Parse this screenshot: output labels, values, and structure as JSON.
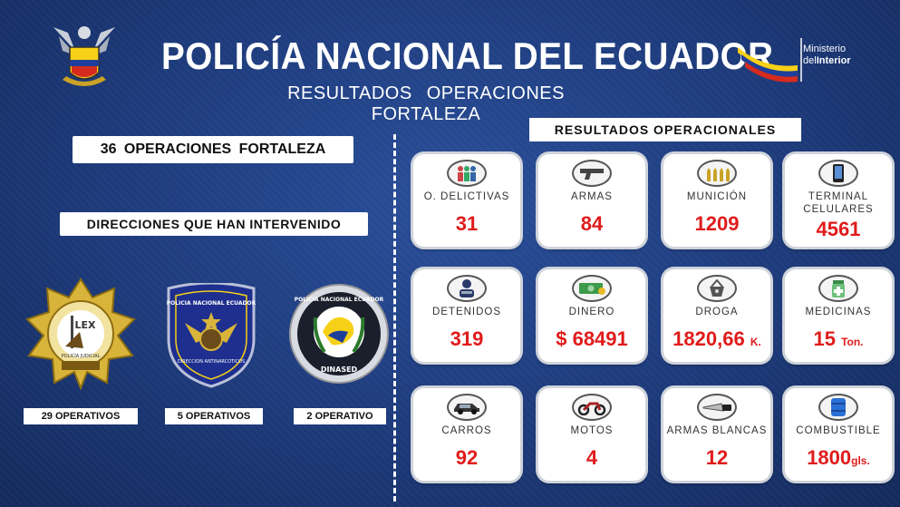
{
  "header": {
    "title": "POLICÍA NACIONAL DEL ECUADOR",
    "subtitle": "RESULTADOS OPERACIONES FORTALEZA",
    "ministerio_line1": "Ministerio",
    "ministerio_line2_prefix": "del",
    "ministerio_line2_bold": "Interior"
  },
  "left": {
    "total_operations": "36 OPERACIONES FORTALEZA",
    "directions_label": "DIRECCIONES QUE HAN INTERVENIDO",
    "units": [
      {
        "label": "29 OPERATIVOS"
      },
      {
        "label": "5 OPERATIVOS"
      },
      {
        "label": "2 OPERATIVO"
      }
    ],
    "badge_texts": {
      "pj_top": "LEX",
      "pj_bottom": "POLICÍA JUDICIAL",
      "antinarc_top": "POLICIA NACIONAL ECUADOR",
      "antinarc_bottom": "DIRECCION ANTINARCOTICOS",
      "dinased_top": "POLICIA NACIONAL ECUADOR",
      "dinased_bottom": "DINASED"
    }
  },
  "results": {
    "header": "RESULTADOS OPERACIONALES",
    "cards": [
      {
        "icon": "people-icon",
        "label": "O. DELICTIVAS",
        "value": "31"
      },
      {
        "icon": "gun-icon",
        "label": "ARMAS",
        "value": "84"
      },
      {
        "icon": "bullets-icon",
        "label": "MUNICIÓN",
        "value": "1209"
      },
      {
        "icon": "phone-icon",
        "label": "TERMINAL CELULARES",
        "value": "4561"
      },
      {
        "icon": "detainee-icon",
        "label": "DETENIDOS",
        "value": "319"
      },
      {
        "icon": "money-icon",
        "label": "DINERO",
        "value": "$ 68491"
      },
      {
        "icon": "drug-icon",
        "label": "DROGA",
        "value": "1820,66",
        "unit": "K."
      },
      {
        "icon": "medicine-icon",
        "label": "MEDICINAS",
        "value": "15",
        "unit": "Ton."
      },
      {
        "icon": "car-icon",
        "label": "CARROS",
        "value": "92"
      },
      {
        "icon": "motorcycle-icon",
        "label": "MOTOS",
        "value": "4"
      },
      {
        "icon": "knife-icon",
        "label": "ARMAS BLANCAS",
        "value": "12"
      },
      {
        "icon": "fuel-barrel-icon",
        "label": "COMBUSTIBLE",
        "value": "1800",
        "unit": "gls."
      }
    ]
  },
  "colors": {
    "background": "#1d3a7a",
    "value_red": "#e01b1b",
    "flag_yellow": "#f7d117",
    "flag_blue": "#1f3f9a",
    "flag_red": "#d52b1e"
  }
}
